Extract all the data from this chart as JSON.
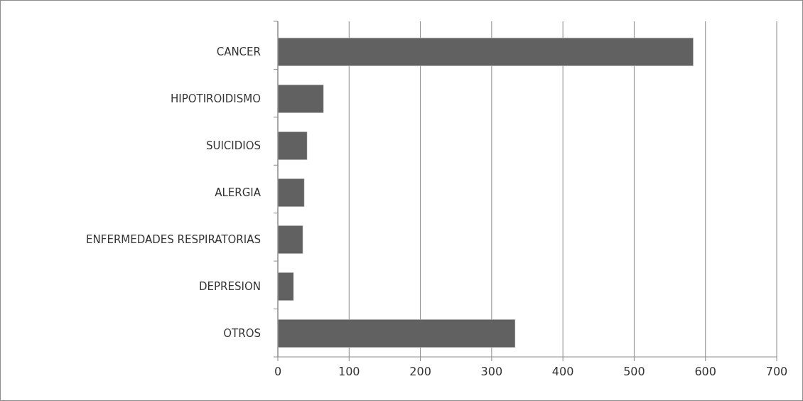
{
  "chart_data": {
    "type": "bar",
    "orientation": "horizontal",
    "categories": [
      "CANCER",
      "HIPOTIROIDISMO",
      "SUICIDIOS",
      "ALERGIA",
      "ENFERMEDADES RESPIRATORIAS",
      "DEPRESION",
      "OTROS"
    ],
    "values": [
      583,
      64,
      41,
      37,
      35,
      22,
      333
    ],
    "color": "#616161",
    "xlim": [
      0,
      700
    ],
    "xticks": [
      0,
      100,
      200,
      300,
      400,
      500,
      600,
      700
    ],
    "grid": "x"
  }
}
